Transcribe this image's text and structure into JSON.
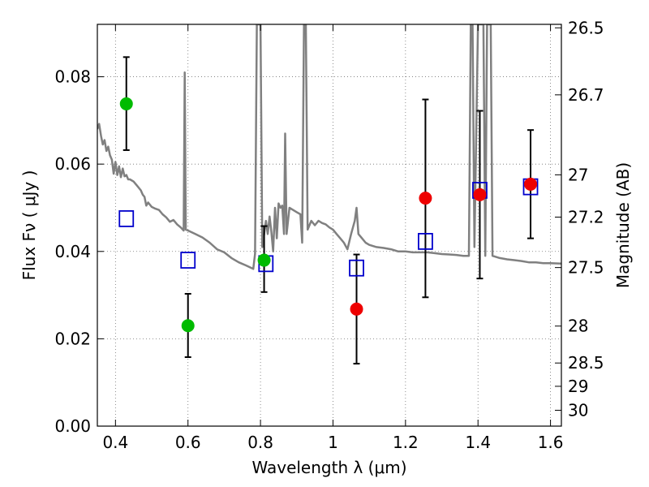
{
  "chart_data": {
    "type": "scatter",
    "title": "",
    "xlabel": "Wavelength  λ (μm)",
    "ylabel": "Flux  Fν  ( μJy )",
    "y2label": "Magnitude (AB)",
    "xlim": [
      0.35,
      1.63
    ],
    "ylim": [
      0.0,
      0.092
    ],
    "grid": true,
    "x_ticks": [
      0.4,
      0.6,
      0.8,
      1.0,
      1.2,
      1.4,
      1.6
    ],
    "x_tick_labels": [
      "0.4",
      "0.6",
      "0.8",
      "1",
      "1.2",
      "1.4",
      "1.6"
    ],
    "y_ticks": [
      0.0,
      0.02,
      0.04,
      0.06,
      0.08
    ],
    "y_tick_labels": [
      "0.00",
      "0.02",
      "0.04",
      "0.06",
      "0.08"
    ],
    "y2_ticks": [
      {
        "label": "26.5",
        "mag": 26.5
      },
      {
        "label": "26.7",
        "mag": 26.7
      },
      {
        "label": "27",
        "mag": 27.0
      },
      {
        "label": "27.2",
        "mag": 27.2
      },
      {
        "label": "27.5",
        "mag": 27.5
      },
      {
        "label": "28",
        "mag": 28.0
      },
      {
        "label": "28.5",
        "mag": 28.5
      },
      {
        "label": "29",
        "mag": 29.0
      },
      {
        "label": "30",
        "mag": 30.0
      }
    ],
    "series": [
      {
        "kind": "spectrum",
        "color": "#808080",
        "points": [
          [
            0.35,
            0.068
          ],
          [
            0.355,
            0.0692
          ],
          [
            0.36,
            0.0665
          ],
          [
            0.365,
            0.0645
          ],
          [
            0.37,
            0.0655
          ],
          [
            0.375,
            0.063
          ],
          [
            0.38,
            0.064
          ],
          [
            0.385,
            0.062
          ],
          [
            0.39,
            0.061
          ],
          [
            0.395,
            0.0578
          ],
          [
            0.4,
            0.0605
          ],
          [
            0.405,
            0.0575
          ],
          [
            0.41,
            0.0595
          ],
          [
            0.415,
            0.057
          ],
          [
            0.42,
            0.059
          ],
          [
            0.425,
            0.0572
          ],
          [
            0.43,
            0.0575
          ],
          [
            0.435,
            0.0565
          ],
          [
            0.44,
            0.0565
          ],
          [
            0.45,
            0.056
          ],
          [
            0.46,
            0.055
          ],
          [
            0.47,
            0.054
          ],
          [
            0.475,
            0.053
          ],
          [
            0.48,
            0.0525
          ],
          [
            0.485,
            0.0505
          ],
          [
            0.49,
            0.0512
          ],
          [
            0.5,
            0.0502
          ],
          [
            0.51,
            0.0498
          ],
          [
            0.52,
            0.0495
          ],
          [
            0.53,
            0.0485
          ],
          [
            0.54,
            0.0478
          ],
          [
            0.55,
            0.0468
          ],
          [
            0.56,
            0.0472
          ],
          [
            0.57,
            0.0462
          ],
          [
            0.58,
            0.0455
          ],
          [
            0.588,
            0.0448
          ],
          [
            0.591,
            0.081
          ],
          [
            0.594,
            0.045
          ],
          [
            0.6,
            0.0448
          ],
          [
            0.62,
            0.044
          ],
          [
            0.64,
            0.0432
          ],
          [
            0.66,
            0.042
          ],
          [
            0.68,
            0.0405
          ],
          [
            0.7,
            0.0398
          ],
          [
            0.72,
            0.0385
          ],
          [
            0.74,
            0.0375
          ],
          [
            0.76,
            0.0368
          ],
          [
            0.78,
            0.036
          ],
          [
            0.785,
            0.0395
          ],
          [
            0.79,
            0.092
          ],
          [
            0.8,
            0.092
          ],
          [
            0.805,
            0.041
          ],
          [
            0.81,
            0.044
          ],
          [
            0.815,
            0.047
          ],
          [
            0.82,
            0.044
          ],
          [
            0.825,
            0.048
          ],
          [
            0.83,
            0.0445
          ],
          [
            0.835,
            0.04
          ],
          [
            0.84,
            0.05
          ],
          [
            0.845,
            0.043
          ],
          [
            0.85,
            0.051
          ],
          [
            0.855,
            0.05
          ],
          [
            0.86,
            0.0505
          ],
          [
            0.865,
            0.044
          ],
          [
            0.868,
            0.067
          ],
          [
            0.872,
            0.044
          ],
          [
            0.88,
            0.05
          ],
          [
            0.89,
            0.0495
          ],
          [
            0.9,
            0.049
          ],
          [
            0.91,
            0.0485
          ],
          [
            0.915,
            0.042
          ],
          [
            0.92,
            0.092
          ],
          [
            0.925,
            0.092
          ],
          [
            0.93,
            0.045
          ],
          [
            0.94,
            0.047
          ],
          [
            0.95,
            0.046
          ],
          [
            0.96,
            0.047
          ],
          [
            0.97,
            0.0465
          ],
          [
            0.98,
            0.0462
          ],
          [
            0.99,
            0.0455
          ],
          [
            1.0,
            0.045
          ],
          [
            1.01,
            0.044
          ],
          [
            1.02,
            0.043
          ],
          [
            1.03,
            0.042
          ],
          [
            1.04,
            0.0405
          ],
          [
            1.05,
            0.044
          ],
          [
            1.06,
            0.047
          ],
          [
            1.065,
            0.05
          ],
          [
            1.07,
            0.044
          ],
          [
            1.08,
            0.043
          ],
          [
            1.09,
            0.042
          ],
          [
            1.1,
            0.0415
          ],
          [
            1.12,
            0.041
          ],
          [
            1.14,
            0.0408
          ],
          [
            1.16,
            0.0405
          ],
          [
            1.18,
            0.04
          ],
          [
            1.2,
            0.04
          ],
          [
            1.22,
            0.0398
          ],
          [
            1.24,
            0.0398
          ],
          [
            1.26,
            0.0398
          ],
          [
            1.28,
            0.0396
          ],
          [
            1.3,
            0.0394
          ],
          [
            1.32,
            0.0393
          ],
          [
            1.34,
            0.0392
          ],
          [
            1.36,
            0.039
          ],
          [
            1.375,
            0.039
          ],
          [
            1.38,
            0.092
          ],
          [
            1.385,
            0.092
          ],
          [
            1.39,
            0.041
          ],
          [
            1.4,
            0.092
          ],
          [
            1.415,
            0.092
          ],
          [
            1.42,
            0.039
          ],
          [
            1.425,
            0.092
          ],
          [
            1.435,
            0.092
          ],
          [
            1.44,
            0.039
          ],
          [
            1.46,
            0.0385
          ],
          [
            1.48,
            0.0382
          ],
          [
            1.5,
            0.038
          ],
          [
            1.52,
            0.0378
          ],
          [
            1.54,
            0.0375
          ],
          [
            1.56,
            0.0375
          ],
          [
            1.58,
            0.0373
          ],
          [
            1.6,
            0.0373
          ],
          [
            1.63,
            0.0372
          ]
        ]
      },
      {
        "kind": "model_squares",
        "color": "#0000cc",
        "points": [
          [
            0.43,
            0.0475
          ],
          [
            0.6,
            0.038
          ],
          [
            0.815,
            0.0372
          ],
          [
            1.065,
            0.0362
          ],
          [
            1.255,
            0.0423
          ],
          [
            1.405,
            0.054
          ],
          [
            1.545,
            0.0548
          ]
        ]
      },
      {
        "kind": "points_with_errors",
        "color": "#00bb00",
        "points": [
          {
            "x": 0.43,
            "y": 0.0738,
            "low": 0.0632,
            "high": 0.0845
          },
          {
            "x": 0.6,
            "y": 0.023,
            "low": 0.0158,
            "high": 0.0303
          },
          {
            "x": 0.81,
            "y": 0.038,
            "low": 0.0307,
            "high": 0.0458
          }
        ]
      },
      {
        "kind": "points_with_errors",
        "color": "#ee0000",
        "points": [
          {
            "x": 1.065,
            "y": 0.0268,
            "low": 0.0143,
            "high": 0.0393
          },
          {
            "x": 1.255,
            "y": 0.0522,
            "low": 0.0295,
            "high": 0.0748
          },
          {
            "x": 1.405,
            "y": 0.053,
            "low": 0.0338,
            "high": 0.0722
          },
          {
            "x": 1.545,
            "y": 0.0554,
            "low": 0.043,
            "high": 0.0678
          }
        ]
      }
    ]
  }
}
